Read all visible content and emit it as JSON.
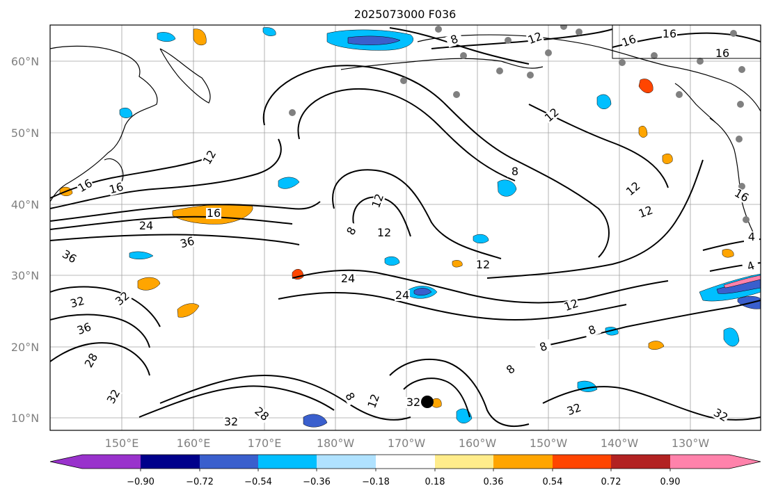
{
  "map": {
    "title": "2025073000 F036",
    "lon_ticks": [
      "150°E",
      "160°E",
      "170°E",
      "180°W",
      "170°W",
      "160°W",
      "150°W",
      "140°W",
      "130°W"
    ],
    "lat_ticks": [
      "60°N",
      "50°N",
      "40°N",
      "30°N",
      "20°N",
      "10°N"
    ],
    "contour_labels": [
      "8",
      "12",
      "16",
      "16",
      "16",
      "12",
      "8",
      "12",
      "12",
      "16",
      "16",
      "12",
      "16",
      "24",
      "36",
      "36",
      "32",
      "32",
      "36",
      "28",
      "32",
      "28",
      "32",
      "12",
      "8",
      "12",
      "24",
      "24",
      "12",
      "12",
      "8",
      "8",
      "8",
      "32",
      "8",
      "12",
      "32",
      "32",
      "4",
      "4",
      "16"
    ]
  },
  "colorbar": {
    "tick_labels": [
      "−0.90",
      "−0.72",
      "−0.54",
      "−0.36",
      "−0.18",
      "0.18",
      "0.36",
      "0.54",
      "0.72",
      "0.90"
    ],
    "colors": [
      "#9932cc",
      "#00008b",
      "#3a5fcd",
      "#00bfff",
      "#b0e2ff",
      "#ffffff",
      "#ffec8b",
      "#ffa500",
      "#ff4500",
      "#b22222",
      "#ff82ab"
    ]
  }
}
